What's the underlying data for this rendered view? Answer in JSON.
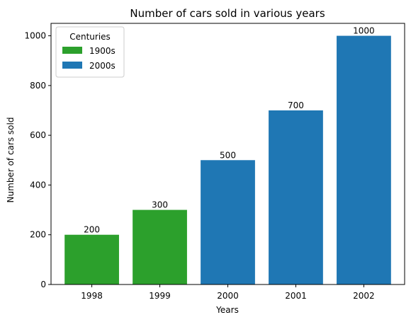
{
  "chart_data": {
    "type": "bar",
    "title": "Number of cars sold in various years",
    "xlabel": "Years",
    "ylabel": "Number of cars sold",
    "categories": [
      "1998",
      "1999",
      "2000",
      "2001",
      "2002"
    ],
    "values": [
      200,
      300,
      500,
      700,
      1000
    ],
    "value_labels": [
      "200",
      "300",
      "500",
      "700",
      "1000"
    ],
    "bar_groups": [
      "1900s",
      "1900s",
      "2000s",
      "2000s",
      "2000s"
    ],
    "ylim": [
      0,
      1050
    ],
    "yticks": [
      0,
      200,
      400,
      600,
      800,
      1000
    ],
    "grid": false,
    "legend": {
      "title": "Centuries",
      "placement": "top-left",
      "entries": [
        {
          "name": "1900s",
          "color": "#2ca02c"
        },
        {
          "name": "2000s",
          "color": "#1f77b4"
        }
      ]
    }
  }
}
